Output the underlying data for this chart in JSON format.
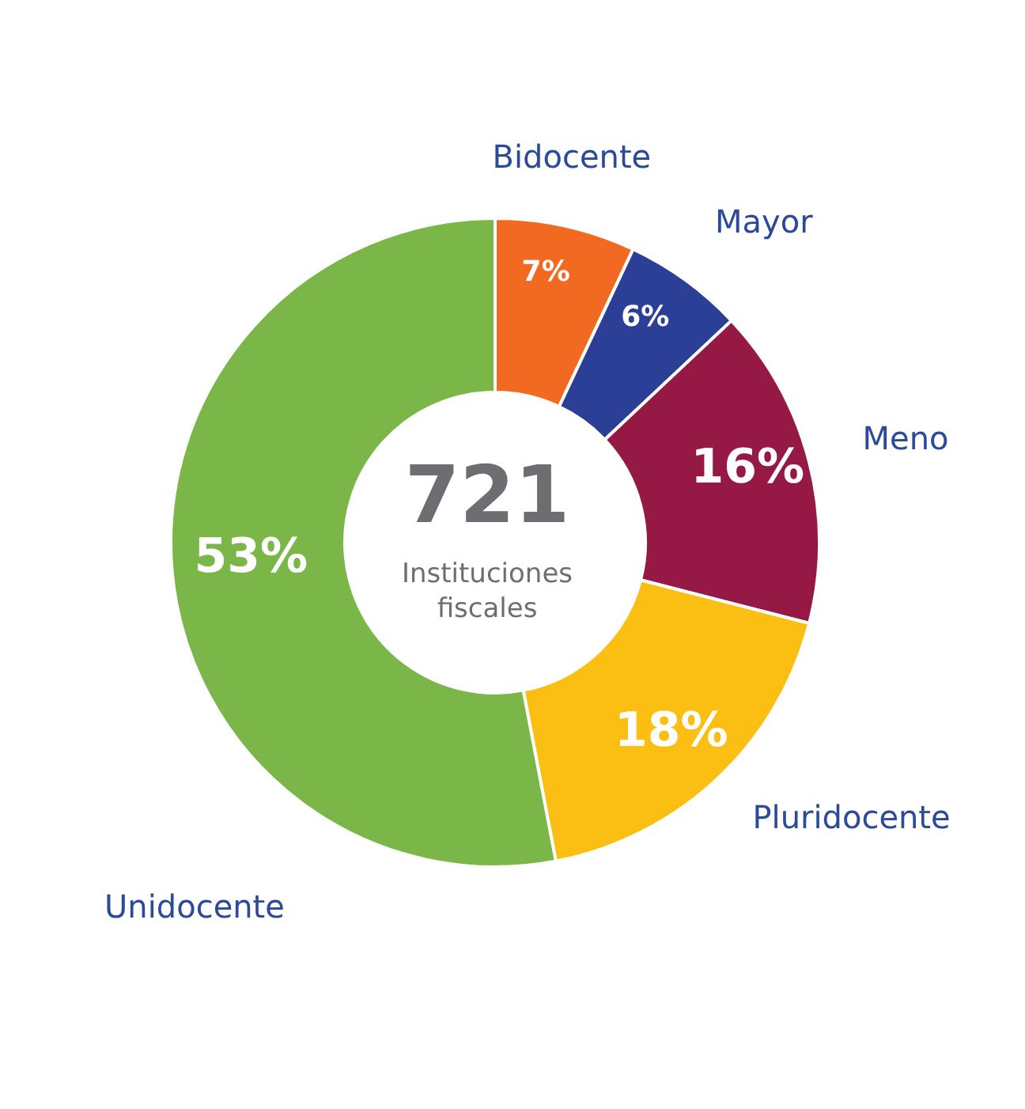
{
  "chart_data": {
    "type": "donut",
    "title": "721",
    "subtitle": "Instituciones fiscales",
    "categories": [
      "Bidocente",
      "Mayor",
      "Meno",
      "Pluridocente",
      "Unidocente"
    ],
    "values": [
      7,
      6,
      16,
      18,
      53
    ],
    "colors": [
      "#f26a21",
      "#2b3f96",
      "#961845",
      "#fbbf14",
      "#7ab648"
    ],
    "value_labels": [
      "7%",
      "6%",
      "16%",
      "18%",
      "53%"
    ]
  }
}
